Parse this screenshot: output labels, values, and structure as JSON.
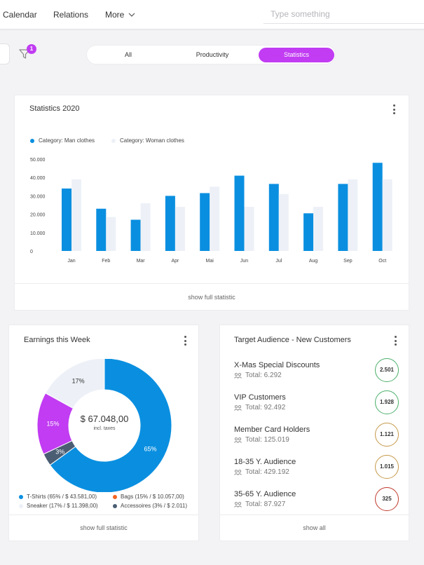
{
  "topbar": {
    "nav": [
      "Calendar",
      "Relations",
      "More"
    ],
    "search_placeholder": "Type something"
  },
  "filter": {
    "badge": "1"
  },
  "tabs": [
    {
      "label": "All",
      "active": false
    },
    {
      "label": "Productivity",
      "active": false
    },
    {
      "label": "Statistics",
      "active": true
    }
  ],
  "stats_card": {
    "title": "Statistics 2020",
    "legend": [
      "Category: Man clothes",
      "Category: Woman clothes"
    ],
    "footer": "show full statistic"
  },
  "earnings_card": {
    "title": "Earnings this Week",
    "total": "$ 67.048,00",
    "total_sub": "incl. taxes",
    "legend": [
      "T-Shirts (65% / $ 43.581,00)",
      "Bags (15% / $ 10.057,00)",
      "Sneaker (17% / $ 11.398,00)",
      "Accessoires (3% / $ 2.011)"
    ],
    "footer": "show full statistic"
  },
  "audience_card": {
    "title": "Target Audience - New Customers",
    "items": [
      {
        "name": "X-Mas Special Discounts",
        "total": "Total: 6.292",
        "value": "2.501",
        "color": "#4caf6a"
      },
      {
        "name": "VIP Customers",
        "total": "Total: 92.492",
        "value": "1.928",
        "color": "#4caf6a"
      },
      {
        "name": "Member Card Holders",
        "total": "Total: 125.019",
        "value": "1.121",
        "color": "#c69a4a"
      },
      {
        "name": "18-35 Y. Audience",
        "total": "Total: 429.192",
        "value": "1.015",
        "color": "#c69a4a"
      },
      {
        "name": "35-65 Y. Audience",
        "total": "Total: 87.927",
        "value": "325",
        "color": "#c0392b"
      }
    ],
    "footer": "show all"
  },
  "chart_data": [
    {
      "type": "bar",
      "title": "Statistics 2020",
      "categories": [
        "Jan",
        "Feb",
        "Mar",
        "Apr",
        "Mai",
        "Jun",
        "Jul",
        "Aug",
        "Sep",
        "Oct"
      ],
      "series": [
        {
          "name": "Category: Man clothes",
          "color": "#0a8fe0",
          "values": [
            34000,
            23000,
            17000,
            30000,
            31500,
            41000,
            36500,
            20500,
            36500,
            48000
          ]
        },
        {
          "name": "Category: Woman clothes",
          "color": "#edf1f7",
          "values": [
            39000,
            18500,
            26000,
            24000,
            35000,
            24000,
            31000,
            24000,
            39000,
            39000
          ]
        }
      ],
      "yticks": [
        "50.000",
        "40.000",
        "30.000",
        "20.000",
        "10.000",
        "0"
      ],
      "ylim": [
        0,
        50000
      ],
      "grid": false,
      "legend": "top-left"
    },
    {
      "type": "pie",
      "title": "Earnings this Week",
      "slices": [
        {
          "label": "T-Shirts",
          "value": 65,
          "display": "65%",
          "color": "#0a8fe0"
        },
        {
          "label": "Accessoires",
          "value": 3,
          "display": "3%",
          "color": "#4a5d73"
        },
        {
          "label": "Bags",
          "value": 15,
          "display": "15%",
          "color": "#c13cf2"
        },
        {
          "label": "Sneaker",
          "value": 17,
          "display": "17%",
          "color": "#edf1f7"
        }
      ]
    }
  ]
}
